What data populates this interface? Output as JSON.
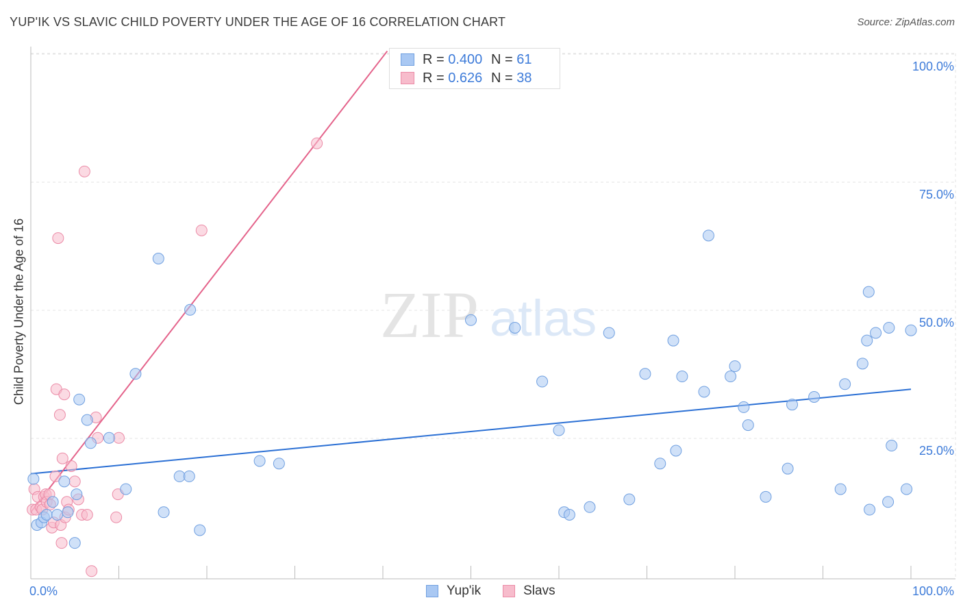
{
  "header": {
    "title": "YUP'IK VS SLAVIC CHILD POVERTY UNDER THE AGE OF 16 CORRELATION CHART",
    "source": "Source: ZipAtlas.com"
  },
  "legend": {
    "series": [
      {
        "r_label": "R = ",
        "r_value": "0.400",
        "n_label": "N = ",
        "n_value": "61"
      },
      {
        "r_label": "R = ",
        "r_value": "0.626",
        "n_label": "N = ",
        "n_value": "38"
      }
    ]
  },
  "watermark": {
    "zip": "ZIP",
    "atlas": "atlas"
  },
  "colors": {
    "yupik_fill": "#a9c8f3",
    "yupik_stroke": "#6f9fe0",
    "yupik_line": "#2a6fd4",
    "slavs_fill": "#f7bccc",
    "slavs_stroke": "#eb8aa6",
    "slavs_line": "#e4628a",
    "tick_label": "#3d7bd9",
    "grid": "#e3e3e3"
  },
  "chart_data": {
    "type": "scatter",
    "xlabel": "",
    "ylabel": "Child Poverty Under the Age of 16",
    "xlim": [
      0,
      100
    ],
    "ylim": [
      0,
      103
    ],
    "x_tick_labels": [
      {
        "value": 0,
        "label": "0.0%"
      },
      {
        "value": 100,
        "label": "100.0%"
      }
    ],
    "y_tick_labels": [
      {
        "value": 25,
        "label": "25.0%"
      },
      {
        "value": 50,
        "label": "50.0%"
      },
      {
        "value": 75,
        "label": "75.0%"
      },
      {
        "value": 100,
        "label": "100.0%"
      }
    ],
    "grid": true,
    "legend_placement": "bottom-center",
    "series": [
      {
        "name": "Yup'ik",
        "points": [
          [
            0.3,
            19.5
          ],
          [
            0.7,
            10.5
          ],
          [
            1.2,
            11
          ],
          [
            1.5,
            12
          ],
          [
            1.8,
            12.5
          ],
          [
            2.5,
            15
          ],
          [
            3,
            12.5
          ],
          [
            3.8,
            19
          ],
          [
            4.2,
            13
          ],
          [
            5,
            7
          ],
          [
            5.5,
            35
          ],
          [
            5.2,
            16.5
          ],
          [
            6.4,
            31
          ],
          [
            6.8,
            26.5
          ],
          [
            8.9,
            27.5
          ],
          [
            10.8,
            17.5
          ],
          [
            11.9,
            40
          ],
          [
            14.5,
            62.5
          ],
          [
            15.1,
            13
          ],
          [
            16.9,
            20
          ],
          [
            18,
            20
          ],
          [
            18.1,
            52.5
          ],
          [
            19.2,
            9.5
          ],
          [
            26,
            23
          ],
          [
            28.2,
            22.5
          ],
          [
            50,
            50.5
          ],
          [
            55,
            49
          ],
          [
            58.1,
            38.5
          ],
          [
            60,
            29
          ],
          [
            60.6,
            13
          ],
          [
            61.2,
            12.5
          ],
          [
            63.5,
            14
          ],
          [
            65.7,
            48
          ],
          [
            68,
            15.5
          ],
          [
            69.8,
            40
          ],
          [
            71.5,
            22.5
          ],
          [
            73,
            46.5
          ],
          [
            73.3,
            25
          ],
          [
            74,
            39.5
          ],
          [
            76.5,
            36.5
          ],
          [
            77,
            67
          ],
          [
            79.5,
            39.5
          ],
          [
            80,
            41.5
          ],
          [
            81,
            33.5
          ],
          [
            81.5,
            30
          ],
          [
            83.5,
            16
          ],
          [
            86,
            21.5
          ],
          [
            86.5,
            34
          ],
          [
            89,
            35.5
          ],
          [
            92,
            17.5
          ],
          [
            92.5,
            38
          ],
          [
            94.5,
            42
          ],
          [
            95,
            46.5
          ],
          [
            95.2,
            56
          ],
          [
            95.3,
            13.5
          ],
          [
            96,
            48
          ],
          [
            97.4,
            15
          ],
          [
            97.5,
            49
          ],
          [
            97.8,
            26
          ],
          [
            99.5,
            17.5
          ],
          [
            100,
            48.5
          ]
        ]
      },
      {
        "name": "Slavs",
        "points": [
          [
            0.2,
            13.5
          ],
          [
            0.4,
            17.5
          ],
          [
            0.6,
            13.5
          ],
          [
            0.8,
            16
          ],
          [
            1.1,
            14
          ],
          [
            1.3,
            13.5
          ],
          [
            1.5,
            16
          ],
          [
            1.7,
            16.5
          ],
          [
            1.8,
            15
          ],
          [
            2.1,
            16.5
          ],
          [
            2.2,
            14.5
          ],
          [
            2.4,
            10
          ],
          [
            2.6,
            11
          ],
          [
            2.8,
            20
          ],
          [
            2.9,
            37
          ],
          [
            3.1,
            66.5
          ],
          [
            3.3,
            32
          ],
          [
            3.4,
            10.5
          ],
          [
            3.5,
            7
          ],
          [
            3.6,
            23.5
          ],
          [
            3.8,
            36
          ],
          [
            3.9,
            12
          ],
          [
            4.1,
            15
          ],
          [
            4.3,
            13.5
          ],
          [
            4.6,
            22
          ],
          [
            5,
            19
          ],
          [
            5.4,
            15.5
          ],
          [
            5.8,
            12.5
          ],
          [
            6.1,
            79.5
          ],
          [
            6.4,
            12.5
          ],
          [
            6.9,
            1.5
          ],
          [
            7.4,
            31.5
          ],
          [
            7.6,
            27.5
          ],
          [
            9.7,
            12
          ],
          [
            9.9,
            16.5
          ],
          [
            10,
            27.5
          ],
          [
            19.4,
            68
          ],
          [
            32.5,
            85
          ]
        ]
      }
    ],
    "trend_lines": [
      {
        "series": "Yup'ik",
        "from": [
          0,
          20.5
        ],
        "to": [
          100,
          37
        ]
      },
      {
        "series": "Slavs",
        "from": [
          0,
          13
        ],
        "to": [
          40.5,
          103
        ]
      }
    ]
  }
}
